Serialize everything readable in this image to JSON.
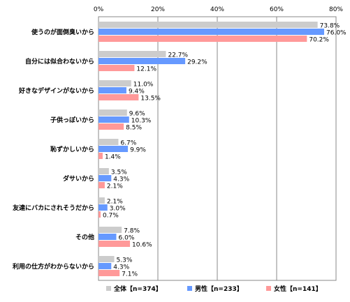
{
  "chart_data": {
    "type": "bar",
    "orientation": "horizontal",
    "categories": [
      "使うのが面倒臭いから",
      "自分には似合わないから",
      "好きなデザインがないから",
      "子供っぽいから",
      "恥ずかしいから",
      "ダサいから",
      "友達にバカにされそうだから",
      "その他",
      "利用の仕方がわからないから"
    ],
    "series": [
      {
        "name": "全体【n=374】",
        "values": [
          73.8,
          22.7,
          11.0,
          9.6,
          6.7,
          3.5,
          2.1,
          7.8,
          5.3
        ]
      },
      {
        "name": "男性【n=233】",
        "values": [
          76.0,
          29.2,
          9.4,
          10.3,
          9.9,
          4.3,
          3.0,
          6.0,
          4.3
        ]
      },
      {
        "name": "女性【n=141】",
        "values": [
          70.2,
          12.1,
          13.5,
          8.5,
          1.4,
          2.1,
          0.7,
          10.6,
          7.1
        ]
      }
    ],
    "x_ticks": [
      "0%",
      "20%",
      "40%",
      "60%",
      "80%"
    ],
    "xlim": [
      0,
      80
    ],
    "value_suffix": "%",
    "grid": true,
    "legend_position": "bottom-right",
    "colors": [
      "#cccccc",
      "#6699ff",
      "#ff9999"
    ]
  }
}
